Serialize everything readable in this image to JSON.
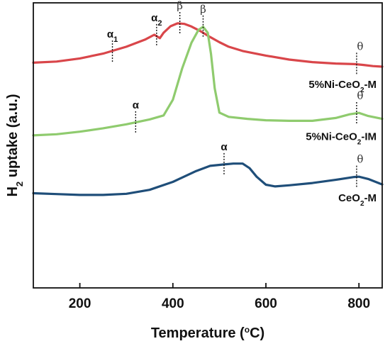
{
  "chart_data": {
    "type": "line",
    "title": "",
    "xlabel": "Temperature (oC)",
    "xlabel_parts": {
      "main": "Temperature (",
      "sup": "o",
      "rest": "C)"
    },
    "ylabel": "H2 uptake (a.u.)",
    "ylabel_parts": {
      "before": "H",
      "sub": "2",
      "after": " uptake (a.u.)"
    },
    "xlim": [
      100,
      850
    ],
    "ylim": [
      0,
      100
    ],
    "xticks": [
      200,
      400,
      600,
      800
    ],
    "xtick_labels": [
      "200",
      "400",
      "600",
      "800"
    ],
    "y_tick_labels_shown": false,
    "grid": false,
    "legend": "inline labels",
    "series": [
      {
        "name": "5%Ni-CeO2-M",
        "label_parts": {
          "before": "5%Ni-CeO",
          "sub": "2",
          "after": "-M"
        },
        "color": "#d9464a",
        "x": [
          100,
          150,
          200,
          250,
          300,
          340,
          360,
          372,
          380,
          395,
          410,
          425,
          440,
          460,
          480,
          500,
          520,
          550,
          600,
          650,
          700,
          750,
          790,
          810,
          830,
          850
        ],
        "y": [
          79.0,
          79.4,
          80.5,
          82.2,
          84.6,
          87.1,
          88.8,
          87.6,
          89.5,
          91.8,
          92.8,
          92.6,
          91.7,
          90.0,
          88.0,
          86.2,
          84.6,
          83.1,
          81.5,
          80.1,
          79.2,
          78.7,
          78.5,
          78.2,
          77.8,
          77.6
        ],
        "peaks": [
          {
            "label": "α",
            "sub": "1",
            "x": 270,
            "y": 82.8
          },
          {
            "label": "α",
            "sub": "2",
            "x": 365,
            "y": 88.6
          },
          {
            "label": "β",
            "sub": "",
            "x": 415,
            "y": 92.8
          },
          {
            "label": "θ",
            "sub": "",
            "x": 795,
            "y": 78.5
          }
        ]
      },
      {
        "name": "5%Ni-CeO2-IM",
        "label_parts": {
          "before": "5%Ni-CeO",
          "sub": "2",
          "after": "-IM"
        },
        "color": "#8fcb6e",
        "x": [
          100,
          150,
          200,
          250,
          300,
          350,
          380,
          400,
          420,
          440,
          455,
          465,
          475,
          482,
          490,
          500,
          520,
          560,
          600,
          650,
          700,
          750,
          780,
          800,
          820,
          850
        ],
        "y": [
          53.5,
          53.9,
          54.8,
          56.0,
          57.4,
          59.1,
          60.5,
          66.0,
          77.0,
          86.0,
          90.5,
          91.6,
          89.5,
          82.0,
          70.0,
          61.5,
          60.0,
          59.3,
          58.8,
          58.6,
          58.6,
          59.6,
          60.9,
          61.4,
          60.3,
          59.3
        ],
        "peaks": [
          {
            "label": "α",
            "sub": "",
            "x": 320,
            "y": 58.0
          },
          {
            "label": "β",
            "sub": "",
            "x": 465,
            "y": 91.6
          },
          {
            "label": "θ",
            "sub": "",
            "x": 795,
            "y": 61.2
          }
        ]
      },
      {
        "name": "CeO2-M",
        "label_parts": {
          "before": "CeO",
          "sub": "2",
          "after": "-M"
        },
        "color": "#1f4e79",
        "x": [
          100,
          150,
          200,
          250,
          300,
          350,
          400,
          450,
          480,
          510,
          530,
          550,
          565,
          580,
          600,
          620,
          650,
          700,
          750,
          790,
          800,
          820,
          850
        ],
        "y": [
          33.2,
          32.9,
          32.6,
          32.6,
          33.0,
          34.4,
          37.2,
          41.0,
          42.8,
          43.3,
          43.6,
          43.6,
          42.0,
          39.0,
          36.2,
          35.6,
          36.0,
          36.8,
          37.9,
          38.9,
          39.0,
          38.2,
          36.3
        ],
        "peaks": [
          {
            "label": "α",
            "sub": "",
            "x": 510,
            "y": 43.3
          },
          {
            "label": "θ",
            "sub": "",
            "x": 795,
            "y": 38.9
          }
        ]
      }
    ]
  }
}
